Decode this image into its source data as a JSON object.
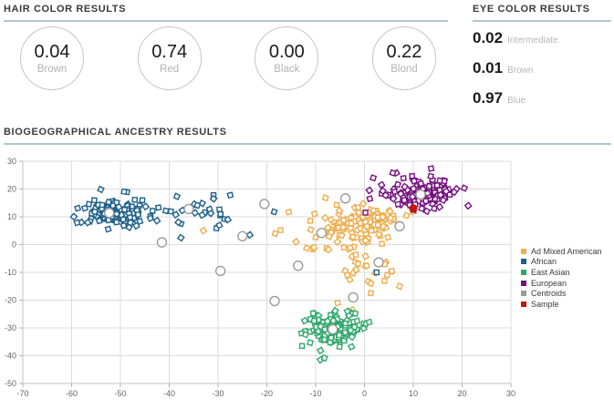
{
  "hair": {
    "title": "HAIR COLOR RESULTS",
    "items": [
      {
        "value": "0.04",
        "label": "Brown"
      },
      {
        "value": "0.74",
        "label": "Red"
      },
      {
        "value": "0.00",
        "label": "Black"
      },
      {
        "value": "0.22",
        "label": "Blond"
      }
    ]
  },
  "eye": {
    "title": "EYE COLOR RESULTS",
    "items": [
      {
        "value": "0.02",
        "label": "Intermediate"
      },
      {
        "value": "0.01",
        "label": "Brown"
      },
      {
        "value": "0.97",
        "label": "Blue"
      }
    ]
  },
  "ancestry": {
    "title": "BIOGEOGRAPHICAL ANCESTRY RESULTS"
  },
  "colors": {
    "header_rule": "#b4c7d1",
    "grid": "#dcdcdc",
    "axis": "#c2c2c2",
    "tick": "#b0b0b0",
    "axis_label": "#646464"
  },
  "chart_data": {
    "type": "scatter",
    "title": "",
    "xlabel": "",
    "ylabel": "",
    "xlim": [
      -70,
      30
    ],
    "ylim": [
      -50,
      30
    ],
    "xticks": [
      -70,
      -60,
      -50,
      -40,
      -30,
      -20,
      -10,
      0,
      10,
      20,
      30
    ],
    "yticks": [
      30,
      20,
      10,
      0,
      -10,
      -20,
      -30,
      -40,
      -50
    ],
    "grid": true,
    "legend_position": "right",
    "marker": "open-square",
    "series": [
      {
        "name": "Ad Mixed American",
        "color": "#eead4c",
        "clusters": [
          {
            "center": [
              1.5,
              8.5
            ],
            "std": [
              3.2,
              2.8
            ],
            "count": 78,
            "seed": 11
          },
          {
            "center": [
              -6,
              3.5
            ],
            "std": [
              3.6,
              3.4
            ],
            "count": 46,
            "seed": 12
          },
          {
            "center": [
              0.5,
              -6
            ],
            "std": [
              2.6,
              4.2
            ],
            "count": 20,
            "seed": 13
          }
        ],
        "points": [
          [
            -33,
            5
          ],
          [
            -18.3,
            4
          ],
          [
            -17.2,
            5.2
          ],
          [
            -15.5,
            11.7
          ],
          [
            -14,
            1
          ],
          [
            -8,
            16.8
          ],
          [
            -5.7,
            14.3
          ],
          [
            -5.5,
            -21
          ],
          [
            -2.5,
            -23.5
          ],
          [
            1.3,
            -14
          ],
          [
            4.1,
            -13.1
          ],
          [
            -3.5,
            -11
          ],
          [
            -3,
            -12.6
          ],
          [
            7.2,
            -15
          ],
          [
            1.3,
            -17.5
          ]
        ]
      },
      {
        "name": "African",
        "color": "#1d5f8a",
        "clusters": [
          {
            "center": [
              -51,
              11.2
            ],
            "std": [
              3.5,
              2.4
            ],
            "count": 130,
            "seed": 21
          },
          {
            "center": [
              -35,
              12
            ],
            "std": [
              5.0,
              3.3
            ],
            "count": 27,
            "seed": 22
          }
        ],
        "points": [
          [
            -23.5,
            3.5
          ],
          [
            -18.5,
            11.8
          ],
          [
            2.5,
            -10
          ],
          [
            -27.5,
            17.8
          ],
          [
            -28,
            9
          ]
        ]
      },
      {
        "name": "East Asian",
        "color": "#2ea76a",
        "clusters": [
          {
            "center": [
              -6.5,
              -30.5
            ],
            "std": [
              2.6,
              2.9
            ],
            "count": 148,
            "seed": 31
          }
        ],
        "points": [
          [
            -9,
            -41.5
          ],
          [
            -8.2,
            -40.8
          ],
          [
            -12.8,
            -36.5
          ],
          [
            -1.5,
            -27.5
          ],
          [
            -3.5,
            -24
          ]
        ]
      },
      {
        "name": "European",
        "color": "#75107f",
        "clusters": [
          {
            "center": [
              12,
              18.2
            ],
            "std": [
              3.3,
              2.6
            ],
            "count": 140,
            "seed": 41
          }
        ],
        "points": [
          [
            1,
            19.5
          ],
          [
            1.8,
            24
          ],
          [
            0.2,
            11.5
          ],
          [
            1.1,
            16.5
          ],
          [
            3.5,
            21.5
          ],
          [
            5.8,
            25.8
          ]
        ]
      }
    ],
    "centroids": {
      "name": "Centroids",
      "color": "#9b9b9b",
      "points": [
        [
          -52.3,
          11.4
        ],
        [
          -41.5,
          0.8
        ],
        [
          -36,
          12.8
        ],
        [
          -29.5,
          -9.5
        ],
        [
          -25,
          3
        ],
        [
          -20.5,
          14.6
        ],
        [
          -18.4,
          -20.3
        ],
        [
          -13.6,
          -7.6
        ],
        [
          -8.8,
          4.2
        ],
        [
          -3.9,
          16.6
        ],
        [
          -2.3,
          -19
        ],
        [
          2.9,
          -6.4
        ],
        [
          7.2,
          6.6
        ],
        [
          11.5,
          18
        ],
        [
          -6.5,
          -30.5
        ]
      ]
    },
    "sample": {
      "name": "Sample",
      "color": "#c2170c",
      "point": [
        10,
        13
      ]
    }
  }
}
